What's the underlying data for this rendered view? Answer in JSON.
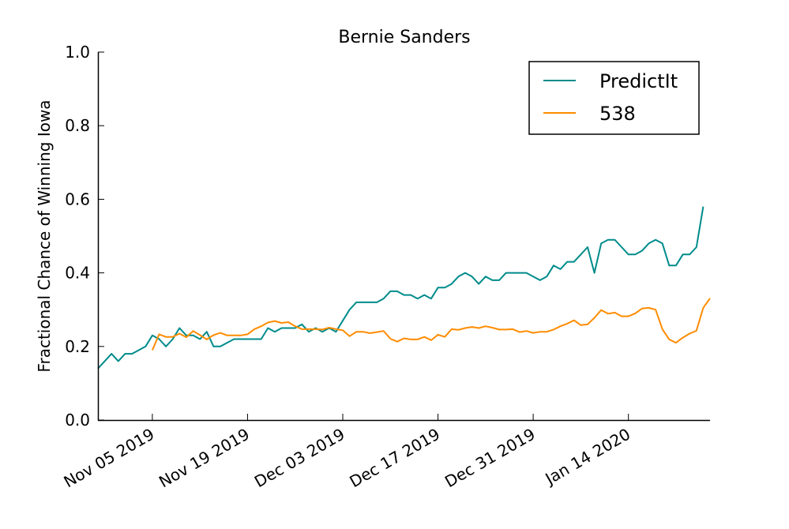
{
  "chart_data": {
    "type": "line",
    "title": "Bernie Sanders",
    "xlabel": "",
    "ylabel": "Fractional Chance of Winning Iowa",
    "ylim": [
      0.0,
      1.0
    ],
    "xlim": [
      "2019-10-28",
      "2020-01-26"
    ],
    "yticks": [
      "0.0",
      "0.2",
      "0.4",
      "0.6",
      "0.8",
      "1.0"
    ],
    "xticks": [
      {
        "date": "2019-11-05",
        "label": "Nov 05 2019"
      },
      {
        "date": "2019-11-19",
        "label": "Nov 19 2019"
      },
      {
        "date": "2019-12-03",
        "label": "Dec 03 2019"
      },
      {
        "date": "2019-12-17",
        "label": "Dec 17 2019"
      },
      {
        "date": "2019-12-31",
        "label": "Dec 31 2019"
      },
      {
        "date": "2020-01-14",
        "label": "Jan 14 2020"
      }
    ],
    "grid": false,
    "legend": "top-right",
    "x": [
      "2019-10-28",
      "2019-10-29",
      "2019-10-30",
      "2019-10-31",
      "2019-11-01",
      "2019-11-02",
      "2019-11-03",
      "2019-11-04",
      "2019-11-05",
      "2019-11-06",
      "2019-11-07",
      "2019-11-08",
      "2019-11-09",
      "2019-11-10",
      "2019-11-11",
      "2019-11-12",
      "2019-11-13",
      "2019-11-14",
      "2019-11-15",
      "2019-11-16",
      "2019-11-17",
      "2019-11-18",
      "2019-11-19",
      "2019-11-20",
      "2019-11-21",
      "2019-11-22",
      "2019-11-23",
      "2019-11-24",
      "2019-11-25",
      "2019-11-26",
      "2019-11-27",
      "2019-11-28",
      "2019-11-29",
      "2019-11-30",
      "2019-12-01",
      "2019-12-02",
      "2019-12-03",
      "2019-12-04",
      "2019-12-05",
      "2019-12-06",
      "2019-12-07",
      "2019-12-08",
      "2019-12-09",
      "2019-12-10",
      "2019-12-11",
      "2019-12-12",
      "2019-12-13",
      "2019-12-14",
      "2019-12-15",
      "2019-12-16",
      "2019-12-17",
      "2019-12-18",
      "2019-12-19",
      "2019-12-20",
      "2019-12-21",
      "2019-12-22",
      "2019-12-23",
      "2019-12-24",
      "2019-12-25",
      "2019-12-26",
      "2019-12-27",
      "2019-12-28",
      "2019-12-29",
      "2019-12-30",
      "2019-12-31",
      "2020-01-01",
      "2020-01-02",
      "2020-01-03",
      "2020-01-04",
      "2020-01-05",
      "2020-01-06",
      "2020-01-07",
      "2020-01-08",
      "2020-01-09",
      "2020-01-10",
      "2020-01-11",
      "2020-01-12",
      "2020-01-13",
      "2020-01-14",
      "2020-01-15",
      "2020-01-16",
      "2020-01-17",
      "2020-01-18",
      "2020-01-19",
      "2020-01-20",
      "2020-01-21",
      "2020-01-22",
      "2020-01-23",
      "2020-01-24",
      "2020-01-25",
      "2020-01-26"
    ],
    "series": [
      {
        "name": "PredictIt",
        "color": "#008b8b",
        "values": [
          0.14,
          0.16,
          0.18,
          0.16,
          0.18,
          0.18,
          0.19,
          0.2,
          0.23,
          0.22,
          0.2,
          0.22,
          0.25,
          0.23,
          0.23,
          0.22,
          0.24,
          0.2,
          0.2,
          0.21,
          0.22,
          0.22,
          0.22,
          0.22,
          0.22,
          0.25,
          0.24,
          0.25,
          0.25,
          0.25,
          0.26,
          0.24,
          0.25,
          0.24,
          0.25,
          0.24,
          0.27,
          0.3,
          0.32,
          0.32,
          0.32,
          0.32,
          0.33,
          0.35,
          0.35,
          0.34,
          0.34,
          0.33,
          0.34,
          0.33,
          0.36,
          0.36,
          0.37,
          0.39,
          0.4,
          0.39,
          0.37,
          0.39,
          0.38,
          0.38,
          0.4,
          0.4,
          0.4,
          0.4,
          0.39,
          0.38,
          0.39,
          0.42,
          0.41,
          0.43,
          0.43,
          0.45,
          0.47,
          0.4,
          0.48,
          0.49,
          0.49,
          0.47,
          0.45,
          0.45,
          0.46,
          0.48,
          0.49,
          0.48,
          0.42,
          0.42,
          0.45,
          0.45,
          0.47,
          0.58,
          null
        ]
      },
      {
        "name": "538",
        "color": "#ff8c00",
        "values": [
          null,
          null,
          null,
          null,
          null,
          null,
          null,
          null,
          0.19,
          0.233,
          0.226,
          0.226,
          0.235,
          0.225,
          0.242,
          0.231,
          0.219,
          0.231,
          0.237,
          0.23,
          0.23,
          0.23,
          0.233,
          0.247,
          0.255,
          0.265,
          0.269,
          0.264,
          0.266,
          0.255,
          0.247,
          0.247,
          0.247,
          0.246,
          0.251,
          0.247,
          0.244,
          0.228,
          0.24,
          0.24,
          0.236,
          0.239,
          0.242,
          0.221,
          0.213,
          0.222,
          0.219,
          0.219,
          0.226,
          0.217,
          0.232,
          0.226,
          0.247,
          0.245,
          0.25,
          0.253,
          0.25,
          0.255,
          0.251,
          0.246,
          0.246,
          0.247,
          0.239,
          0.242,
          0.237,
          0.24,
          0.24,
          0.246,
          0.255,
          0.262,
          0.271,
          0.258,
          0.26,
          0.278,
          0.299,
          0.289,
          0.292,
          0.282,
          0.282,
          0.29,
          0.303,
          0.305,
          0.3,
          0.247,
          0.219,
          0.21,
          0.224,
          0.235,
          0.243,
          0.305,
          0.331
        ]
      }
    ]
  }
}
